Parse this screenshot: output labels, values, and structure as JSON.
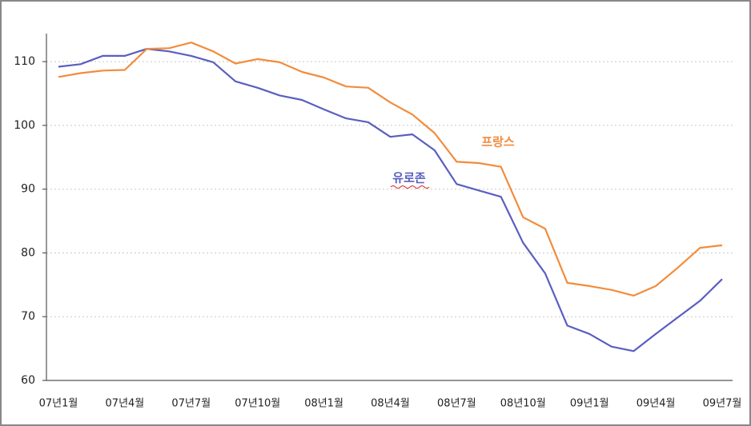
{
  "chart_data": {
    "type": "line",
    "categories": [
      "07년1월",
      null,
      null,
      "07년4월",
      null,
      null,
      "07년7월",
      null,
      null,
      "07년10월",
      null,
      null,
      "08년1월",
      null,
      null,
      "08년4월",
      null,
      null,
      "08년7월",
      null,
      null,
      "08년10월",
      null,
      null,
      "09년1월",
      null,
      null,
      "09년4월",
      null,
      null,
      "09년7월"
    ],
    "series": [
      {
        "name": "유로존",
        "color": "#5a5ec0",
        "values": [
          109.2,
          109.6,
          110.9,
          110.9,
          112.0,
          111.6,
          110.9,
          109.9,
          106.9,
          105.9,
          104.7,
          104.0,
          102.5,
          101.1,
          100.5,
          98.2,
          98.6,
          96.1,
          90.8,
          89.8,
          88.8,
          81.6,
          76.8,
          68.6,
          67.3,
          65.3,
          64.6,
          67.3,
          69.9,
          72.5,
          75.9
        ]
      },
      {
        "name": "프랑스",
        "color": "#f28c3c",
        "values": [
          107.6,
          108.2,
          108.6,
          108.7,
          112.0,
          112.1,
          113.0,
          111.6,
          109.7,
          110.4,
          109.9,
          108.4,
          107.5,
          106.1,
          105.9,
          103.6,
          101.7,
          98.8,
          94.3,
          94.1,
          93.5,
          85.6,
          83.8,
          75.3,
          74.8,
          74.2,
          73.3,
          74.8,
          77.7,
          80.8,
          81.2
        ]
      }
    ],
    "ylim": [
      60,
      114.4
    ],
    "yticks": [
      60,
      70,
      80,
      90,
      100,
      110
    ],
    "grid": true
  }
}
